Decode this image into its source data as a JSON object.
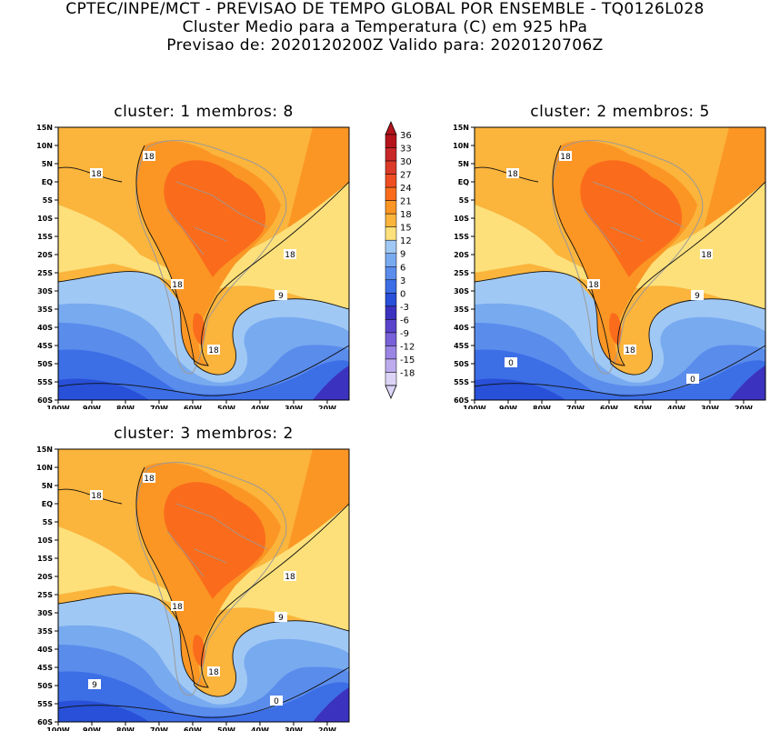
{
  "header": {
    "line1": "CPTEC/INPE/MCT - PREVISAO DE TEMPO GLOBAL POR ENSEMBLE - TQ0126L028",
    "line2": "Cluster Medio para a Temperatura (C) em 925 hPa",
    "line3": "Previsao de: 2020120200Z   Valido para: 2020120706Z"
  },
  "panels": [
    {
      "title": "cluster: 1   membros: 8",
      "contour_labels": [
        "18",
        "18",
        "18",
        "18",
        "18",
        "9"
      ]
    },
    {
      "title": "cluster: 2   membros: 5",
      "contour_labels": [
        "18",
        "18",
        "18",
        "18",
        "18",
        "9",
        "0",
        "0"
      ]
    },
    {
      "title": "cluster: 3   membros: 2",
      "contour_labels": [
        "18",
        "18",
        "18",
        "18",
        "18",
        "9",
        "9",
        "0"
      ]
    }
  ],
  "axes": {
    "lat_labels": [
      "15N",
      "10N",
      "5N",
      "EQ",
      "5S",
      "10S",
      "15S",
      "20S",
      "25S",
      "30S",
      "35S",
      "40S",
      "45S",
      "50S",
      "55S",
      "60S"
    ],
    "lon_labels": [
      "100W",
      "90W",
      "80W",
      "70W",
      "60W",
      "50W",
      "40W",
      "30W",
      "20W"
    ]
  },
  "colorbar": {
    "levels": [
      "36",
      "33",
      "30",
      "27",
      "24",
      "21",
      "18",
      "15",
      "12",
      "9",
      "6",
      "3",
      "0",
      "-3",
      "-6",
      "-9",
      "-12",
      "-15",
      "-18"
    ],
    "colors": [
      "#b4141c",
      "#c82828",
      "#dc3a28",
      "#ee4e22",
      "#fa6c1c",
      "#fb9624",
      "#fbb43c",
      "#fde07a",
      "#a0c8f4",
      "#78aaf0",
      "#5a8cec",
      "#3c6ee6",
      "#2850d8",
      "#3c32c0",
      "#5a44cc",
      "#7860d8",
      "#9a84e4",
      "#bcacee",
      "#dcd4f6"
    ]
  },
  "colors": {
    "orange": "#fbb43c",
    "light_orange": "#fde07a",
    "dark_orange": "#fb9624",
    "red_orange": "#fa6c1c",
    "light_blue": "#a0c8f4",
    "mid_blue": "#78aaf0",
    "blue": "#5a8cec",
    "dark_blue": "#3c6ee6",
    "deep_blue": "#2850d8",
    "purple": "#3c32c0"
  }
}
